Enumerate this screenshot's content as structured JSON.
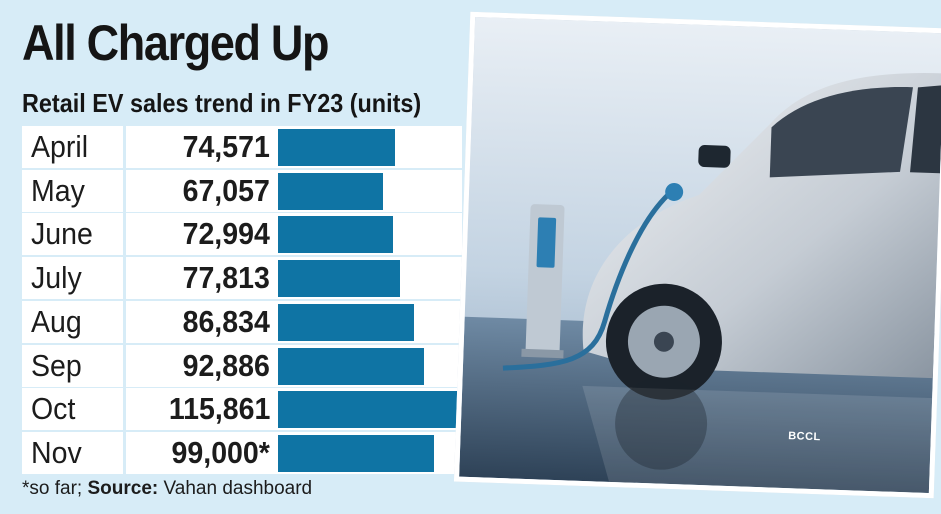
{
  "title": "All Charged Up",
  "subtitle": "Retail EV sales trend in FY23 (units)",
  "footnote": {
    "prefix": "*so far; ",
    "source_label": "Source:",
    "source_text": " Vahan dashboard"
  },
  "photo_credit": "BCCL",
  "colors": {
    "bar": "#0f74a4",
    "background": "#d7ecf7"
  },
  "chart_data": {
    "type": "bar",
    "orientation": "horizontal",
    "title": "All Charged Up",
    "subtitle": "Retail EV sales trend in FY23 (units)",
    "categories": [
      "April",
      "May",
      "June",
      "July",
      "Aug",
      "Sep",
      "Oct",
      "Nov"
    ],
    "values": [
      74571,
      67057,
      72994,
      77813,
      86834,
      92886,
      115861,
      99000
    ],
    "value_labels": [
      "74,571",
      "67,057",
      "72,994",
      "77,813",
      "86,834",
      "92,886",
      "115,861",
      "99,000*"
    ],
    "xlim": [
      0,
      115861
    ],
    "grid": false,
    "legend": "none"
  }
}
